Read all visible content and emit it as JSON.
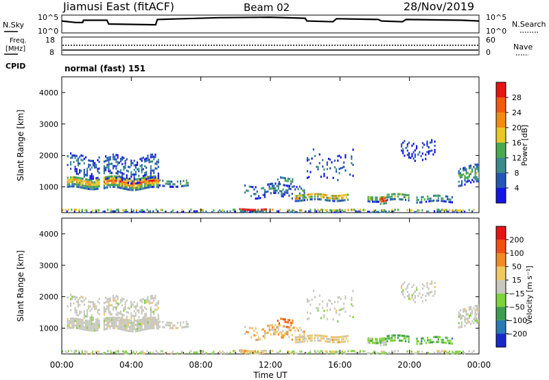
{
  "header": {
    "station": "Jiamusi East (fitACF)",
    "beam": "Beam 02",
    "date": "28/Nov/2019"
  },
  "noise_panel": {
    "left_label": "N.Sky",
    "right_label": "N.Search",
    "left_ticks": [
      "10^5",
      "10^0"
    ],
    "right_ticks": [
      "10^5",
      "10^0"
    ]
  },
  "freq_panel": {
    "left_label_1": "Freq.",
    "left_label_2": "[MHz]",
    "left_ticks": [
      "18",
      "8"
    ],
    "right_label": "Nave",
    "right_ticks": [
      "60",
      "0"
    ],
    "cpid_label": "CPID"
  },
  "cpid_text": "normal (fast) 151",
  "chart_data": [
    {
      "type": "heatmap",
      "name": "power",
      "ylabel": "Slant Range [km]",
      "xlabel": "",
      "ylim": [
        180,
        4500
      ],
      "yticks": [
        "1000",
        "2000",
        "3000",
        "4000"
      ],
      "colorbar": {
        "label": "Power [dB]",
        "ticks": [
          "4",
          "8",
          "12",
          "16",
          "20",
          "24",
          "28"
        ],
        "colors": [
          "#1414e6",
          "#2656b4",
          "#3c8a8a",
          "#4aa852",
          "#e6c828",
          "#f08c14",
          "#f05a10",
          "#e61414"
        ],
        "range": [
          0,
          32
        ]
      }
    },
    {
      "type": "heatmap",
      "name": "velocity",
      "ylabel": "Slant Range [km]",
      "xlabel": "Time UT",
      "ylim": [
        180,
        4500
      ],
      "yticks": [
        "1000",
        "2000",
        "3000",
        "4000"
      ],
      "xticks": [
        "00:00",
        "04:00",
        "08:00",
        "12:00",
        "16:00",
        "20:00",
        "00:00"
      ],
      "xlim_hours": [
        0,
        24
      ],
      "colorbar": {
        "label": "Velocity [m s⁻¹]",
        "ticks": [
          "200",
          "100",
          "50",
          "15",
          "−15",
          "−50",
          "−100",
          "−200"
        ],
        "colors": [
          "#1a28c8",
          "#2a7ab4",
          "#3c9c50",
          "#7ed23c",
          "#c8c8be",
          "#f0c864",
          "#f08c28",
          "#f05014",
          "#e61414"
        ]
      }
    }
  ]
}
